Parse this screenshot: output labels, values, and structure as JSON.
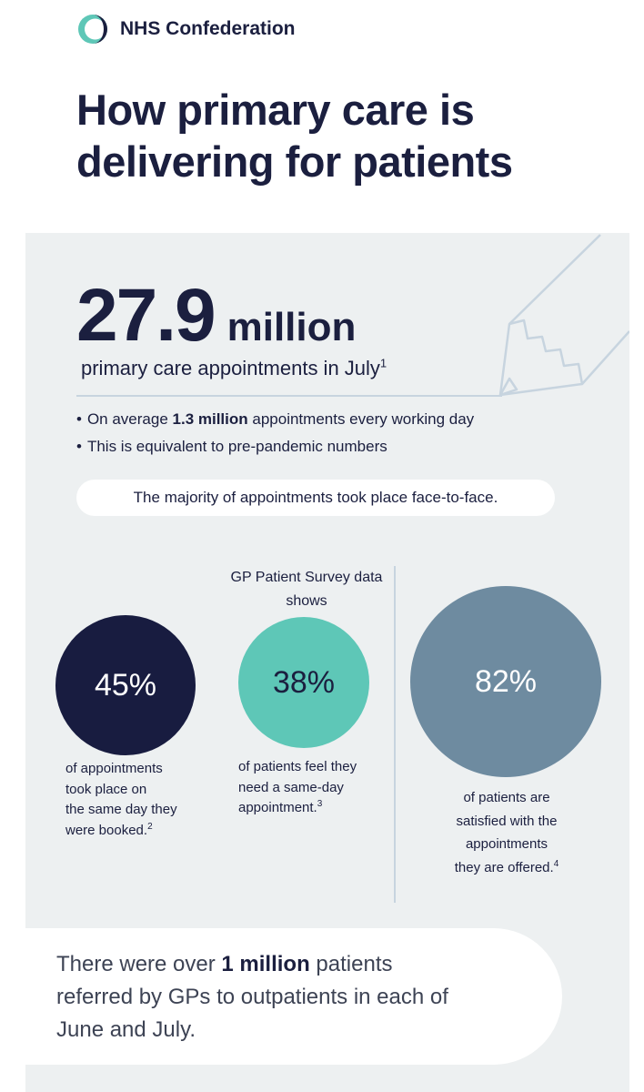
{
  "brand": {
    "name": "NHS Confederation",
    "accent_color": "#5ec7b7",
    "navy": "#1b1f3f",
    "logo_icon": "nhs-confederation-logo-icon"
  },
  "headline": "How primary care is delivering for patients",
  "hero": {
    "number": "27.9",
    "unit": "million",
    "subtitle": "primary care appointments in July",
    "subtitle_ref": "1",
    "decoration_icon": "pencil-icon"
  },
  "bullets": [
    {
      "prefix": "On average ",
      "bold": "1.3 million",
      "suffix": " appointments every working day"
    },
    {
      "text": "This is equivalent to pre-pandemic numbers"
    }
  ],
  "pill_text": "The majority of appointments took place face-to-face.",
  "survey_label": "GP Patient Survey data shows",
  "stats": [
    {
      "value": "45%",
      "caption": "of appointments\ntook place on\nthe same day they\nwere booked.",
      "ref": "2",
      "color": "#181c40"
    },
    {
      "value": "38%",
      "caption": "of patients feel they\nneed a same-day\nappointment.",
      "ref": "3",
      "color": "#5ec7b7"
    },
    {
      "value": "82%",
      "caption": "of patients are\nsatisfied with the\nappointments\nthey are offered.",
      "ref": "4",
      "color": "#6e8ba0"
    }
  ],
  "referral": {
    "prefix": "There were over ",
    "bold": "1 million",
    "suffix": " patients referred by GPs to outpatients in each of June and July."
  }
}
